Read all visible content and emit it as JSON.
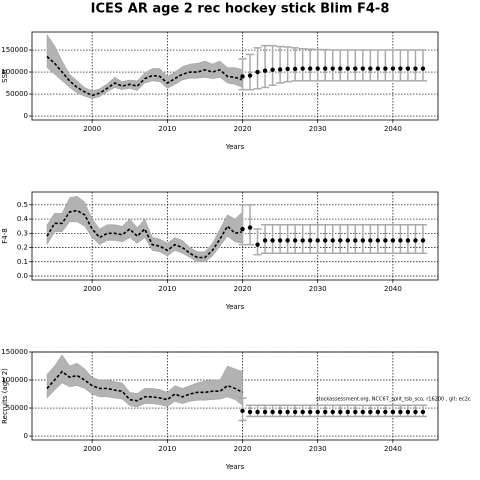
{
  "chart_data": [
    {
      "type": "line",
      "title": "ICES AR age 2 rec hockey stick Blim F4-8",
      "ylabel": "SSB",
      "xlabel": "Years",
      "xlim": [
        1992,
        2046
      ],
      "xticks": [
        2000,
        2010,
        2020,
        2030,
        2040
      ],
      "ylim": [
        -9000,
        191000
      ],
      "yticks": [
        0,
        50000,
        100000,
        150000
      ],
      "grid": true,
      "band_color": "#b3b3b3",
      "line_color": "#000000",
      "bar_color": "#aaaaaa",
      "x": [
        1994,
        1995,
        1996,
        1997,
        1998,
        1999,
        2000,
        2001,
        2002,
        2003,
        2004,
        2005,
        2006,
        2007,
        2008,
        2009,
        2010,
        2011,
        2012,
        2013,
        2014,
        2015,
        2016,
        2017,
        2018,
        2019,
        2020
      ],
      "estimate": [
        135000,
        120000,
        100000,
        80000,
        65000,
        55000,
        47000,
        52000,
        63000,
        75000,
        68000,
        72000,
        68000,
        85000,
        92000,
        90000,
        75000,
        85000,
        95000,
        100000,
        100000,
        105000,
        100000,
        105000,
        90000,
        88000,
        82000
      ],
      "lower": [
        110000,
        95000,
        80000,
        65000,
        52000,
        45000,
        40000,
        44000,
        55000,
        65000,
        60000,
        63000,
        58000,
        75000,
        80000,
        78000,
        63000,
        72000,
        82000,
        86000,
        86000,
        88000,
        85000,
        88000,
        75000,
        72000,
        65000
      ],
      "upper": [
        185000,
        160000,
        125000,
        95000,
        80000,
        65000,
        57000,
        62000,
        73000,
        88000,
        78000,
        82000,
        80000,
        98000,
        108000,
        108000,
        90000,
        100000,
        112000,
        118000,
        120000,
        125000,
        118000,
        125000,
        110000,
        110000,
        105000
      ],
      "forecast_x": [
        2020,
        2021,
        2022,
        2023,
        2024,
        2025,
        2026,
        2027,
        2028,
        2029,
        2030,
        2031,
        2032,
        2033,
        2034,
        2035,
        2036,
        2037,
        2038,
        2039,
        2040,
        2041,
        2042,
        2043,
        2044
      ],
      "forecast": [
        90000,
        92000,
        100000,
        103000,
        105000,
        106000,
        107000,
        107000,
        108000,
        108000,
        108000,
        108000,
        108000,
        108000,
        108000,
        108000,
        108000,
        108000,
        108000,
        108000,
        108000,
        108000,
        108000,
        108000,
        108000
      ],
      "forecast_lower": [
        60000,
        60000,
        62000,
        65000,
        70000,
        75000,
        78000,
        80000,
        80000,
        80000,
        80000,
        80000,
        80000,
        80000,
        80000,
        80000,
        80000,
        80000,
        80000,
        80000,
        80000,
        80000,
        80000,
        80000,
        80000
      ],
      "forecast_upper": [
        130000,
        140000,
        155000,
        160000,
        160000,
        158000,
        157000,
        155000,
        153000,
        152000,
        151000,
        151000,
        150000,
        150000,
        150000,
        150000,
        150000,
        150000,
        150000,
        150000,
        150000,
        150000,
        150000,
        150000,
        150000
      ]
    },
    {
      "type": "line",
      "ylabel": "F4-8",
      "xlabel": "Years",
      "xlim": [
        1992,
        2046
      ],
      "xticks": [
        2000,
        2010,
        2020,
        2030,
        2040
      ],
      "ylim": [
        -0.028,
        0.59
      ],
      "yticks": [
        {
          "value": 0,
          "label": "0.0"
        },
        0.1,
        0.2,
        0.3,
        0.4,
        0.5
      ],
      "grid": true,
      "band_color": "#b3b3b3",
      "line_color": "#000000",
      "bar_color": "#aaaaaa",
      "x": [
        1994,
        1995,
        1996,
        1997,
        1998,
        1999,
        2000,
        2001,
        2002,
        2003,
        2004,
        2005,
        2006,
        2007,
        2008,
        2009,
        2010,
        2011,
        2012,
        2013,
        2014,
        2015,
        2016,
        2017,
        2018,
        2019,
        2020
      ],
      "estimate": [
        0.28,
        0.37,
        0.37,
        0.45,
        0.46,
        0.43,
        0.33,
        0.27,
        0.3,
        0.3,
        0.29,
        0.33,
        0.28,
        0.33,
        0.22,
        0.21,
        0.18,
        0.22,
        0.2,
        0.16,
        0.13,
        0.13,
        0.18,
        0.26,
        0.35,
        0.3,
        0.31
      ],
      "lower": [
        0.22,
        0.31,
        0.31,
        0.38,
        0.38,
        0.35,
        0.27,
        0.22,
        0.25,
        0.25,
        0.24,
        0.27,
        0.23,
        0.27,
        0.18,
        0.17,
        0.14,
        0.18,
        0.16,
        0.13,
        0.1,
        0.1,
        0.14,
        0.21,
        0.28,
        0.24,
        0.23
      ],
      "upper": [
        0.36,
        0.44,
        0.44,
        0.55,
        0.56,
        0.52,
        0.4,
        0.33,
        0.36,
        0.36,
        0.35,
        0.4,
        0.34,
        0.4,
        0.27,
        0.26,
        0.23,
        0.27,
        0.25,
        0.2,
        0.17,
        0.17,
        0.23,
        0.33,
        0.43,
        0.4,
        0.45
      ],
      "forecast_x": [
        2020,
        2021,
        2022,
        2023,
        2024,
        2025,
        2026,
        2027,
        2028,
        2029,
        2030,
        2031,
        2032,
        2033,
        2034,
        2035,
        2036,
        2037,
        2038,
        2039,
        2040,
        2041,
        2042,
        2043,
        2044
      ],
      "forecast": [
        0.33,
        0.34,
        0.22,
        0.25,
        0.25,
        0.25,
        0.25,
        0.25,
        0.25,
        0.25,
        0.25,
        0.25,
        0.25,
        0.25,
        0.25,
        0.25,
        0.25,
        0.25,
        0.25,
        0.25,
        0.25,
        0.25,
        0.25,
        0.25,
        0.25
      ],
      "forecast_lower": [
        0.22,
        0.22,
        0.15,
        0.16,
        0.16,
        0.16,
        0.16,
        0.16,
        0.16,
        0.16,
        0.16,
        0.16,
        0.16,
        0.16,
        0.16,
        0.16,
        0.16,
        0.16,
        0.16,
        0.16,
        0.16,
        0.16,
        0.16,
        0.16,
        0.16
      ],
      "forecast_upper": [
        0.5,
        0.5,
        0.33,
        0.36,
        0.36,
        0.36,
        0.36,
        0.36,
        0.36,
        0.36,
        0.36,
        0.36,
        0.36,
        0.36,
        0.36,
        0.36,
        0.36,
        0.36,
        0.36,
        0.36,
        0.36,
        0.36,
        0.36,
        0.36,
        0.36
      ]
    },
    {
      "type": "line",
      "ylabel": "Recruits (age 2)",
      "xlabel": "Years",
      "annotation": "stockassessment.org, NCC67_split_tsb_sco, r16200 , git: ec2c",
      "xlim": [
        1992,
        2046
      ],
      "xticks": [
        2000,
        2010,
        2020,
        2030,
        2040
      ],
      "ylim": [
        -7000,
        150000
      ],
      "yticks": [
        0,
        50000,
        100000,
        150000
      ],
      "grid": true,
      "band_color": "#b3b3b3",
      "line_color": "#000000",
      "bar_color": "#aaaaaa",
      "x": [
        1994,
        1995,
        1996,
        1997,
        1998,
        1999,
        2000,
        2001,
        2002,
        2003,
        2004,
        2005,
        2006,
        2007,
        2008,
        2009,
        2010,
        2011,
        2012,
        2013,
        2014,
        2015,
        2016,
        2017,
        2018,
        2019,
        2020
      ],
      "estimate": [
        85000,
        100000,
        115000,
        105000,
        108000,
        100000,
        90000,
        85000,
        85000,
        82000,
        80000,
        65000,
        63000,
        70000,
        70000,
        68000,
        65000,
        75000,
        70000,
        75000,
        78000,
        78000,
        80000,
        80000,
        90000,
        85000,
        78000
      ],
      "lower": [
        68000,
        82000,
        95000,
        88000,
        90000,
        85000,
        75000,
        70000,
        70000,
        68000,
        66000,
        54000,
        52000,
        58000,
        58000,
        56000,
        53000,
        62000,
        58000,
        62000,
        64000,
        64000,
        65000,
        66000,
        70000,
        65000,
        55000
      ],
      "upper": [
        110000,
        125000,
        145000,
        125000,
        130000,
        120000,
        105000,
        100000,
        100000,
        97000,
        95000,
        78000,
        76000,
        85000,
        85000,
        83000,
        78000,
        90000,
        85000,
        90000,
        95000,
        98000,
        100000,
        100000,
        125000,
        120000,
        115000
      ],
      "forecast_x": [
        2020,
        2021,
        2022,
        2023,
        2024,
        2025,
        2026,
        2027,
        2028,
        2029,
        2030,
        2031,
        2032,
        2033,
        2034,
        2035,
        2036,
        2037,
        2038,
        2039,
        2040,
        2041,
        2042,
        2043,
        2044
      ],
      "forecast": [
        45000,
        43000,
        43000,
        43000,
        43000,
        43000,
        43000,
        43000,
        43000,
        43000,
        43000,
        43000,
        43000,
        43000,
        43000,
        43000,
        43000,
        43000,
        43000,
        43000,
        43000,
        43000,
        43000,
        43000,
        43000
      ],
      "forecast_lower": [
        28000,
        35000,
        35000,
        35000,
        35000,
        35000,
        35000,
        35000,
        35000,
        35000,
        35000,
        35000,
        35000,
        35000,
        35000,
        35000,
        35000,
        35000,
        35000,
        35000,
        35000,
        35000,
        35000,
        35000,
        35000
      ],
      "forecast_upper": [
        68000,
        55000,
        55000,
        55000,
        55000,
        55000,
        55000,
        55000,
        55000,
        55000,
        55000,
        55000,
        55000,
        55000,
        55000,
        55000,
        55000,
        55000,
        55000,
        55000,
        55000,
        55000,
        55000,
        55000,
        55000
      ]
    }
  ]
}
